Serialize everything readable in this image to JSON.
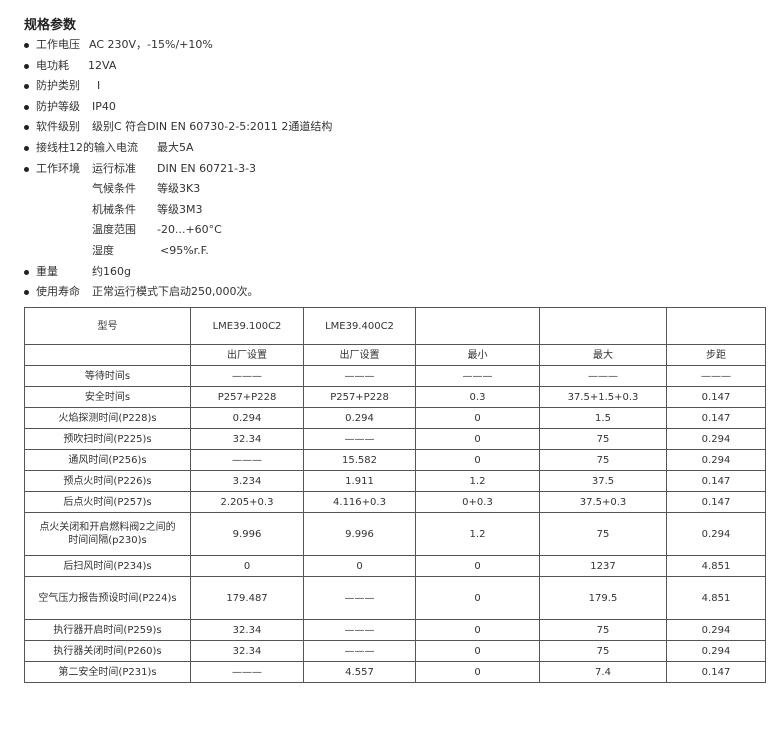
{
  "title": "规格参数",
  "specs": [
    {
      "label": "工作电压",
      "value": "AC 230V，-15%/+10%"
    },
    {
      "label": "电功耗",
      "value": "12VA"
    },
    {
      "label": "防护类别",
      "value": "I"
    },
    {
      "label": "防护等级",
      "value": "IP40"
    },
    {
      "label": "软件级别",
      "value": "级别C 符合DIN EN 60730-2-5:2011  2通道结构"
    },
    {
      "label": "接线柱12的输入电流",
      "value": "最大5A"
    },
    {
      "label": "工作环境",
      "sub": "运行标准",
      "value": "DIN EN 60721-3-3"
    },
    {
      "sub": "气候条件",
      "value": "等级3K3"
    },
    {
      "sub": "机械条件",
      "value": "等级3M3"
    },
    {
      "sub": "温度范围",
      "value": "-20...+60°C"
    },
    {
      "sub": "湿度",
      "value": "<95%r.F."
    },
    {
      "label": "重量",
      "value": "约160g"
    },
    {
      "label": "使用寿命",
      "value": "正常运行模式下启动250,000次。"
    }
  ],
  "table": {
    "rows": [
      [
        "型号",
        "LME39.100C2",
        "LME39.400C2",
        "",
        "",
        ""
      ],
      [
        "",
        "出厂设置",
        "出厂设置",
        "最小",
        "最大",
        "步距"
      ],
      [
        "等待时间s",
        "———",
        "———",
        "———",
        "———",
        "———"
      ],
      [
        "安全时间s",
        "P257+P228",
        "P257+P228",
        "0.3",
        "37.5+1.5+0.3",
        "0.147"
      ],
      [
        "火焰探测时间(P228)s",
        "0.294",
        "0.294",
        "0",
        "1.5",
        "0.147"
      ],
      [
        "预吹扫时间(P225)s",
        "32.34",
        "———",
        "0",
        "75",
        "0.294"
      ],
      [
        "通风时间(P256)s",
        "———",
        "15.582",
        "0",
        "75",
        "0.294"
      ],
      [
        "预点火时间(P226)s",
        "3.234",
        "1.911",
        "1.2",
        "37.5",
        "0.147"
      ],
      [
        "后点火时间(P257)s",
        "2.205+0.3",
        "4.116+0.3",
        "0+0.3",
        "37.5+0.3",
        "0.147"
      ],
      [
        "点火关闭和开启燃料阀2之间的时间间隔(p230)s",
        "9.996",
        "9.996",
        "1.2",
        "75",
        "0.294"
      ],
      [
        "后扫风时间(P234)s",
        "0",
        "0",
        "0",
        "1237",
        "4.851"
      ],
      [
        "空气压力报告预设时间(P224)s",
        "179.487",
        "———",
        "0",
        "179.5",
        "4.851"
      ],
      [
        "执行器开启时间(P259)s",
        "32.34",
        "———",
        "0",
        "75",
        "0.294"
      ],
      [
        "执行器关闭时间(P260)s",
        "32.34",
        "———",
        "0",
        "75",
        "0.294"
      ],
      [
        "第二安全时间(P231)s",
        "———",
        "4.557",
        "0",
        "7.4",
        "0.147"
      ]
    ]
  }
}
